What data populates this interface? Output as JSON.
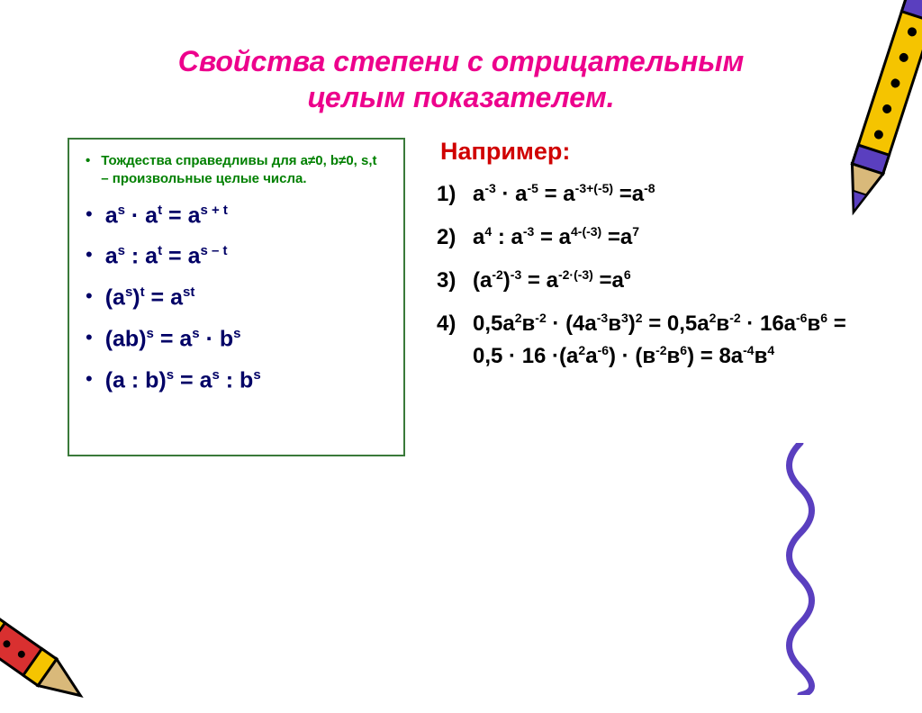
{
  "title_line1": "Свойства степени с отрицательным",
  "title_line2": "целым показателем.",
  "left": {
    "conditions": "Тождества справедливы для a≠0, b≠0, s,t – произвольные целые числа.",
    "rules_html": [
      "a<sup>s</sup> · a<sup>t</sup> = a<sup>s + t</sup>",
      "a<sup>s</sup> : a<sup>t</sup> = a<sup>s – t</sup>",
      "(a<sup>s</sup>)<sup>t</sup> = a<sup>st</sup>",
      "(ab)<sup>s</sup> = a<sup>s</sup> · b<sup>s</sup>",
      "(a : b)<sup>s</sup> = a<sup>s</sup> : b<sup>s</sup>"
    ]
  },
  "right": {
    "heading": "Например:",
    "examples_html": [
      "a<sup>-3</sup> · a<sup>-5</sup> = a<sup>-3+(-5)</sup> =a<sup>-8</sup>",
      "a<sup>4</sup> : a<sup>-3</sup> = a<sup>4-(-3)</sup> =a<sup>7</sup>",
      "(a<sup>-2</sup>)<sup>-3</sup> = a<sup>-2·(-3)</sup> =a<sup>6</sup>",
      "0,5a<sup>2</sup>в<sup>-2</sup> · (4a<sup>-3</sup>в<sup>3</sup>)<sup>2</sup> = 0,5a<sup>2</sup>в<sup>-2</sup> · 16a<sup>-6</sup>в<sup>6</sup> = 0,5 · 16 ·(a<sup>2</sup>a<sup>-6</sup>) · (в<sup>-2</sup>в<sup>6</sup>) = 8a<sup>-4</sup>в<sup>4</sup>"
    ]
  },
  "colors": {
    "title": "#ed008c",
    "rule_text": "#000066",
    "condition_text": "#008000",
    "box_border": "#3a7a3a",
    "example_heading": "#d00000",
    "crayon_purple": "#5a3fbf",
    "crayon_yellow": "#f5c400"
  }
}
